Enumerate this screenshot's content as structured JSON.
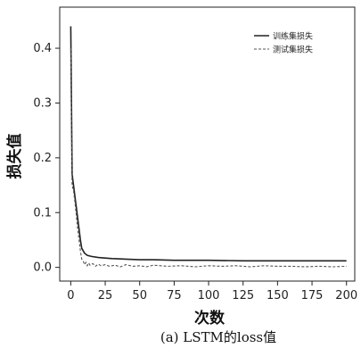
{
  "chart_data": {
    "type": "line",
    "title": "",
    "caption": "(a) LSTM的loss值",
    "xlabel": "次数",
    "ylabel": "损失值",
    "xlim": [
      -8,
      206
    ],
    "ylim": [
      -0.025,
      0.475
    ],
    "xticks": [
      0,
      25,
      50,
      75,
      100,
      125,
      150,
      175,
      200
    ],
    "yticks": [
      0.0,
      0.1,
      0.2,
      0.3,
      0.4
    ],
    "ytick_labels": [
      "0.0",
      "0.1",
      "0.2",
      "0.3",
      "0.4"
    ],
    "grid": false,
    "legend_position": "top-right",
    "series": [
      {
        "name": "训练集损失",
        "style": "solid",
        "color": "#222222",
        "x": [
          0,
          1,
          2,
          3,
          4,
          5,
          6,
          7,
          8,
          10,
          12,
          15,
          20,
          25,
          30,
          40,
          50,
          60,
          75,
          100,
          125,
          150,
          175,
          200
        ],
        "y": [
          0.44,
          0.17,
          0.15,
          0.13,
          0.11,
          0.09,
          0.07,
          0.05,
          0.035,
          0.026,
          0.022,
          0.02,
          0.018,
          0.017,
          0.016,
          0.015,
          0.014,
          0.014,
          0.013,
          0.013,
          0.012,
          0.012,
          0.012,
          0.012
        ]
      },
      {
        "name": "测试集损失",
        "style": "dashed",
        "color": "#555555",
        "x": [
          0,
          1,
          2,
          3,
          4,
          5,
          6,
          7,
          8,
          9,
          10,
          11,
          12,
          13,
          14,
          16,
          18,
          20,
          22,
          25,
          28,
          32,
          36,
          40,
          45,
          50,
          55,
          60,
          70,
          80,
          90,
          100,
          110,
          120,
          130,
          140,
          150,
          160,
          170,
          180,
          190,
          200
        ],
        "y": [
          0.4,
          0.15,
          0.14,
          0.12,
          0.095,
          0.07,
          0.05,
          0.03,
          0.015,
          0.012,
          0.005,
          0.009,
          0.003,
          0.008,
          0.004,
          0.007,
          0.002,
          0.006,
          0.003,
          0.005,
          0.002,
          0.004,
          0.001,
          0.005,
          0.002,
          0.003,
          0.001,
          0.004,
          0.002,
          0.003,
          0.001,
          0.003,
          0.002,
          0.003,
          0.001,
          0.003,
          0.002,
          0.002,
          0.001,
          0.002,
          0.001,
          0.002
        ]
      }
    ]
  },
  "colors": {
    "axis": "#222222",
    "background": "#ffffff"
  }
}
